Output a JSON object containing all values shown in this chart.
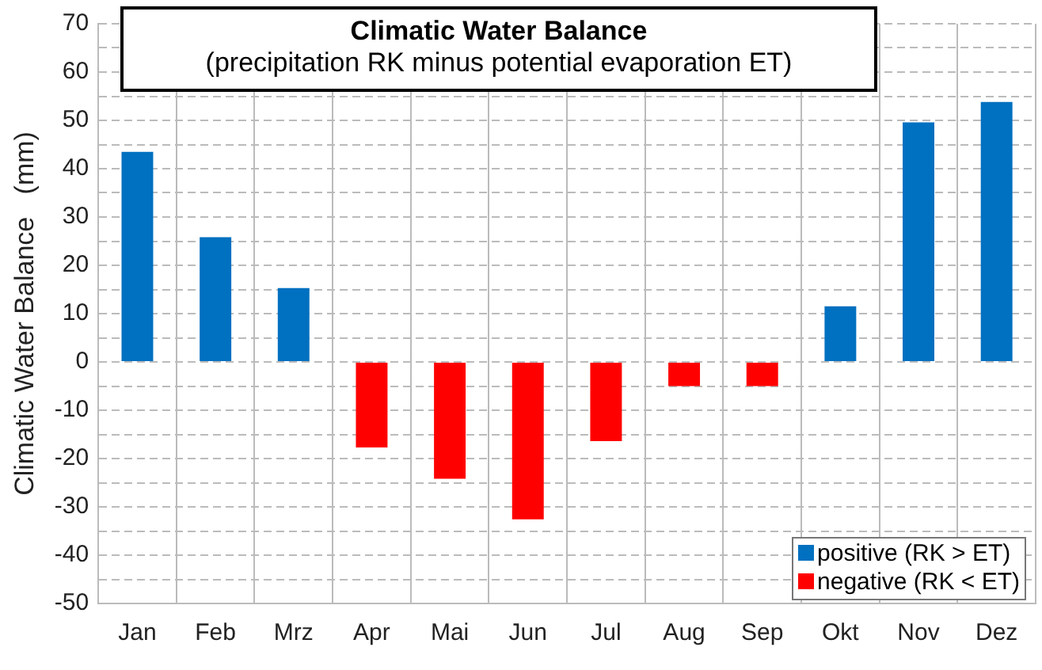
{
  "chart_data": {
    "type": "bar",
    "title": "Climatic Water Balance",
    "subtitle": "(precipitation RK minus potential evaporation ET)",
    "ylabel": "Climatic Water Balance   (mm)",
    "categories": [
      "Jan",
      "Feb",
      "Mrz",
      "Apr",
      "Mai",
      "Jun",
      "Jul",
      "Aug",
      "Sep",
      "Okt",
      "Nov",
      "Dez"
    ],
    "series": [
      {
        "name": "positive  (RK > ET)",
        "color": "#0070c0",
        "values": [
          43.5,
          25.8,
          15.3,
          null,
          null,
          null,
          null,
          null,
          null,
          11.5,
          49.6,
          53.8
        ]
      },
      {
        "name": "negative  (RK < ET)",
        "color": "#ff0000",
        "values": [
          null,
          null,
          null,
          -17.7,
          -24.2,
          -32.6,
          -16.4,
          -5,
          -5,
          null,
          null,
          null
        ]
      }
    ],
    "stacked": true,
    "ylim": [
      -50,
      70
    ],
    "yticks": [
      -50,
      {
        "value": -45,
        "label": null
      },
      -40,
      {
        "value": -35,
        "label": null
      },
      -30,
      {
        "value": -25,
        "label": null
      },
      -20,
      {
        "value": -15,
        "label": null
      },
      -10,
      {
        "value": -5,
        "label": null
      },
      0,
      {
        "value": 5,
        "label": null
      },
      10,
      {
        "value": 15,
        "label": null
      },
      20,
      {
        "value": 25,
        "label": null
      },
      30,
      {
        "value": 35,
        "label": null
      },
      40,
      {
        "value": 45,
        "label": null
      },
      50,
      {
        "value": 55,
        "label": null
      },
      60,
      {
        "value": 65,
        "label": null
      },
      70
    ],
    "grid": true,
    "legend": "bottom right"
  }
}
